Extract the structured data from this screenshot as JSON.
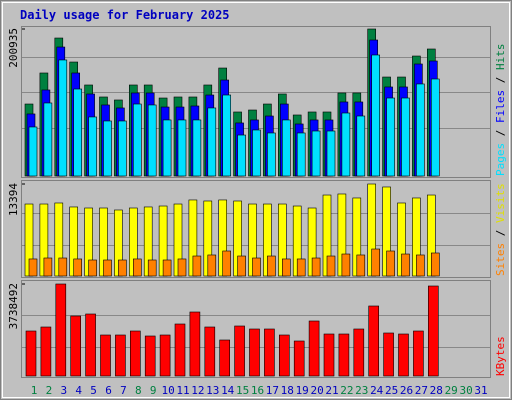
{
  "chart_data": {
    "type": "bar",
    "title": "Daily usage for February 2025",
    "categories": [
      "1",
      "2",
      "3",
      "4",
      "5",
      "6",
      "7",
      "8",
      "9",
      "10",
      "11",
      "12",
      "13",
      "14",
      "15",
      "16",
      "17",
      "18",
      "19",
      "20",
      "21",
      "22",
      "23",
      "24",
      "25",
      "26",
      "27",
      "28",
      "29",
      "30",
      "31"
    ],
    "category_colors": [
      "#008040",
      "#008040",
      "#0000c0",
      "#0000c0",
      "#0000c0",
      "#0000c0",
      "#0000c0",
      "#008040",
      "#008040",
      "#0000c0",
      "#0000c0",
      "#0000c0",
      "#0000c0",
      "#0000c0",
      "#008040",
      "#008040",
      "#0000c0",
      "#0000c0",
      "#0000c0",
      "#0000c0",
      "#0000c0",
      "#008040",
      "#008040",
      "#0000c0",
      "#0000c0",
      "#0000c0",
      "#0000c0",
      "#0000c0",
      "#008040",
      "#008040",
      "#0000c0"
    ],
    "ylim": [
      0,
      200935
    ],
    "yticks": [
      200935
    ],
    "y2lim": [
      0,
      13394
    ],
    "y2ticks": [
      13394
    ],
    "y3lim": [
      0,
      3738492
    ],
    "y3ticks": [
      3738492
    ],
    "series": [
      {
        "name": "Hits",
        "color": "#008040",
        "axis": "y",
        "values": [
          98400,
          140800,
          188600,
          155800,
          124400,
          108000,
          103900,
          124400,
          124400,
          106600,
          108000,
          108000,
          124400,
          147600,
          87500,
          90200,
          98400,
          112100,
          83400,
          87500,
          87500,
          113500,
          113500,
          200935,
          135300,
          135300,
          164000,
          173600,
          null,
          null,
          null
        ]
      },
      {
        "name": "Files",
        "color": "#0000ff",
        "axis": "y",
        "values": [
          84800,
          117600,
          176300,
          140800,
          112100,
          97100,
          93000,
          113500,
          113500,
          94300,
          94300,
          95700,
          110700,
          131200,
          72500,
          76600,
          82000,
          98400,
          71100,
          76600,
          76600,
          101200,
          101200,
          185900,
          121700,
          121700,
          153100,
          157200,
          null,
          null,
          null
        ]
      },
      {
        "name": "Pages",
        "color": "#00e0ff",
        "axis": "y",
        "values": [
          67000,
          99800,
          158600,
          118900,
          80700,
          75200,
          75200,
          98400,
          97100,
          76600,
          76600,
          76600,
          93000,
          110700,
          56000,
          62900,
          58800,
          76600,
          58800,
          61500,
          61500,
          86100,
          82000,
          165400,
          106600,
          106600,
          125800,
          132600,
          null,
          null,
          null
        ]
      },
      {
        "name": "Visits",
        "color": "#ffff00",
        "axis": "y2",
        "values": [
          10480,
          10480,
          10630,
          10050,
          9900,
          9900,
          9610,
          9900,
          10050,
          10190,
          10480,
          11070,
          10920,
          11070,
          10920,
          10480,
          10480,
          10480,
          10190,
          9900,
          11790,
          11940,
          11360,
          13394,
          12960,
          10630,
          11360,
          11790,
          null,
          null,
          null
        ]
      },
      {
        "name": "Sites",
        "color": "#ff8000",
        "axis": "y2",
        "values": [
          2480,
          2620,
          2620,
          2480,
          2330,
          2330,
          2330,
          2480,
          2330,
          2330,
          2480,
          2910,
          3060,
          3640,
          2910,
          2620,
          2910,
          2480,
          2480,
          2620,
          2910,
          3200,
          3060,
          3930,
          3640,
          3200,
          3060,
          3350,
          null,
          null,
          null
        ]
      },
      {
        "name": "KBytes",
        "color": "#ff0000",
        "axis": "y3",
        "values": [
          1828600,
          1991200,
          3738492,
          2438200,
          2519400,
          1666100,
          1666100,
          1828600,
          1625400,
          1666100,
          2113100,
          2600700,
          1991200,
          1462900,
          2031800,
          1909900,
          1909900,
          1666100,
          1422300,
          2235000,
          1706700,
          1706700,
          1909900,
          2844500,
          1747300,
          1706700,
          1828600,
          3657200,
          null,
          null,
          null
        ]
      }
    ]
  }
}
